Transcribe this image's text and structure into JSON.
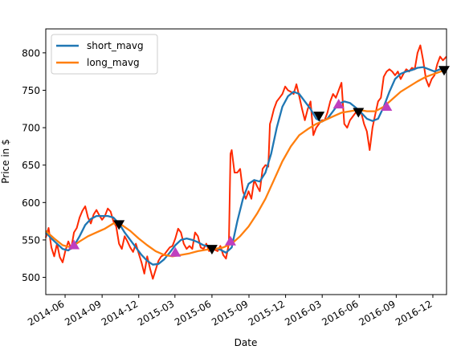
{
  "chart_data": {
    "type": "line",
    "xlabel": "Date",
    "ylabel": "Price in $",
    "xlim": [
      "2014-04-14",
      "2017-01-04"
    ],
    "ylim": [
      477,
      832
    ],
    "x_ticks": [
      "2014-06",
      "2014-09",
      "2014-12",
      "2015-03",
      "2015-06",
      "2015-09",
      "2015-12",
      "2016-03",
      "2016-06",
      "2016-09",
      "2016-12"
    ],
    "y_ticks": [
      500,
      550,
      600,
      650,
      700,
      750,
      800
    ],
    "legend": {
      "placement": "upper-left",
      "entries": [
        "short_mavg",
        "long_mavg"
      ]
    },
    "series": [
      {
        "name": "",
        "role": "price",
        "color": "#ff2a00",
        "points": [
          [
            "2014-04-14",
            553
          ],
          [
            "2014-04-21",
            566
          ],
          [
            "2014-04-28",
            540
          ],
          [
            "2014-05-05",
            528
          ],
          [
            "2014-05-12",
            545
          ],
          [
            "2014-05-19",
            527
          ],
          [
            "2014-05-26",
            520
          ],
          [
            "2014-06-02",
            536
          ],
          [
            "2014-06-09",
            548
          ],
          [
            "2014-06-16",
            538
          ],
          [
            "2014-06-23",
            560
          ],
          [
            "2014-06-30",
            566
          ],
          [
            "2014-07-07",
            580
          ],
          [
            "2014-07-14",
            589
          ],
          [
            "2014-07-21",
            595
          ],
          [
            "2014-07-28",
            580
          ],
          [
            "2014-08-04",
            572
          ],
          [
            "2014-08-11",
            584
          ],
          [
            "2014-08-18",
            590
          ],
          [
            "2014-08-25",
            583
          ],
          [
            "2014-09-01",
            577
          ],
          [
            "2014-09-08",
            582
          ],
          [
            "2014-09-15",
            592
          ],
          [
            "2014-09-22",
            588
          ],
          [
            "2014-09-29",
            575
          ],
          [
            "2014-10-06",
            568
          ],
          [
            "2014-10-13",
            545
          ],
          [
            "2014-10-20",
            538
          ],
          [
            "2014-10-27",
            555
          ],
          [
            "2014-11-03",
            548
          ],
          [
            "2014-11-10",
            540
          ],
          [
            "2014-11-17",
            534
          ],
          [
            "2014-11-24",
            545
          ],
          [
            "2014-12-01",
            532
          ],
          [
            "2014-12-08",
            520
          ],
          [
            "2014-12-15",
            505
          ],
          [
            "2014-12-22",
            528
          ],
          [
            "2014-12-29",
            512
          ],
          [
            "2015-01-05",
            498
          ],
          [
            "2015-01-12",
            510
          ],
          [
            "2015-01-19",
            522
          ],
          [
            "2015-01-26",
            528
          ],
          [
            "2015-02-02",
            530
          ],
          [
            "2015-02-09",
            535
          ],
          [
            "2015-02-16",
            540
          ],
          [
            "2015-02-23",
            542
          ],
          [
            "2015-03-02",
            552
          ],
          [
            "2015-03-09",
            565
          ],
          [
            "2015-03-16",
            560
          ],
          [
            "2015-03-23",
            545
          ],
          [
            "2015-03-30",
            538
          ],
          [
            "2015-04-06",
            542
          ],
          [
            "2015-04-13",
            538
          ],
          [
            "2015-04-20",
            560
          ],
          [
            "2015-04-27",
            555
          ],
          [
            "2015-05-04",
            540
          ],
          [
            "2015-05-11",
            538
          ],
          [
            "2015-05-18",
            545
          ],
          [
            "2015-05-25",
            535
          ],
          [
            "2015-06-01",
            540
          ],
          [
            "2015-06-08",
            537
          ],
          [
            "2015-06-15",
            535
          ],
          [
            "2015-06-22",
            542
          ],
          [
            "2015-06-29",
            530
          ],
          [
            "2015-07-06",
            525
          ],
          [
            "2015-07-13",
            545
          ],
          [
            "2015-07-17",
            665
          ],
          [
            "2015-07-20",
            670
          ],
          [
            "2015-07-27",
            640
          ],
          [
            "2015-08-03",
            640
          ],
          [
            "2015-08-10",
            645
          ],
          [
            "2015-08-17",
            615
          ],
          [
            "2015-08-24",
            605
          ],
          [
            "2015-08-31",
            615
          ],
          [
            "2015-09-07",
            605
          ],
          [
            "2015-09-14",
            630
          ],
          [
            "2015-09-21",
            622
          ],
          [
            "2015-09-28",
            615
          ],
          [
            "2015-10-05",
            645
          ],
          [
            "2015-10-12",
            650
          ],
          [
            "2015-10-19",
            648
          ],
          [
            "2015-10-23",
            705
          ],
          [
            "2015-10-26",
            710
          ],
          [
            "2015-11-02",
            725
          ],
          [
            "2015-11-09",
            735
          ],
          [
            "2015-11-16",
            740
          ],
          [
            "2015-11-23",
            745
          ],
          [
            "2015-11-30",
            755
          ],
          [
            "2015-12-07",
            750
          ],
          [
            "2015-12-14",
            748
          ],
          [
            "2015-12-21",
            745
          ],
          [
            "2015-12-28",
            758
          ],
          [
            "2016-01-04",
            742
          ],
          [
            "2016-01-11",
            725
          ],
          [
            "2016-01-18",
            710
          ],
          [
            "2016-01-25",
            725
          ],
          [
            "2016-02-01",
            735
          ],
          [
            "2016-02-08",
            690
          ],
          [
            "2016-02-15",
            700
          ],
          [
            "2016-02-22",
            705
          ],
          [
            "2016-02-29",
            710
          ],
          [
            "2016-03-07",
            710
          ],
          [
            "2016-03-14",
            720
          ],
          [
            "2016-03-21",
            735
          ],
          [
            "2016-03-28",
            745
          ],
          [
            "2016-04-04",
            740
          ],
          [
            "2016-04-11",
            750
          ],
          [
            "2016-04-18",
            760
          ],
          [
            "2016-04-25",
            705
          ],
          [
            "2016-05-02",
            700
          ],
          [
            "2016-05-09",
            710
          ],
          [
            "2016-05-16",
            715
          ],
          [
            "2016-05-23",
            720
          ],
          [
            "2016-05-30",
            725
          ],
          [
            "2016-06-06",
            720
          ],
          [
            "2016-06-13",
            705
          ],
          [
            "2016-06-20",
            695
          ],
          [
            "2016-06-27",
            670
          ],
          [
            "2016-07-04",
            700
          ],
          [
            "2016-07-11",
            718
          ],
          [
            "2016-07-18",
            735
          ],
          [
            "2016-07-25",
            740
          ],
          [
            "2016-08-01",
            768
          ],
          [
            "2016-08-08",
            775
          ],
          [
            "2016-08-15",
            778
          ],
          [
            "2016-08-22",
            775
          ],
          [
            "2016-08-29",
            770
          ],
          [
            "2016-09-05",
            775
          ],
          [
            "2016-09-12",
            765
          ],
          [
            "2016-09-19",
            772
          ],
          [
            "2016-09-26",
            778
          ],
          [
            "2016-10-03",
            775
          ],
          [
            "2016-10-10",
            780
          ],
          [
            "2016-10-17",
            778
          ],
          [
            "2016-10-24",
            800
          ],
          [
            "2016-10-31",
            810
          ],
          [
            "2016-11-07",
            790
          ],
          [
            "2016-11-14",
            765
          ],
          [
            "2016-11-21",
            755
          ],
          [
            "2016-11-28",
            765
          ],
          [
            "2016-12-05",
            770
          ],
          [
            "2016-12-12",
            785
          ],
          [
            "2016-12-19",
            795
          ],
          [
            "2016-12-26",
            790
          ],
          [
            "2017-01-04",
            795
          ]
        ]
      },
      {
        "name": "short_mavg",
        "color": "#1f77b4",
        "points": [
          [
            "2014-04-14",
            560
          ],
          [
            "2014-04-28",
            552
          ],
          [
            "2014-05-12",
            545
          ],
          [
            "2014-05-26",
            538
          ],
          [
            "2014-06-09",
            536
          ],
          [
            "2014-06-23",
            542
          ],
          [
            "2014-07-07",
            555
          ],
          [
            "2014-07-21",
            570
          ],
          [
            "2014-08-04",
            578
          ],
          [
            "2014-08-18",
            582
          ],
          [
            "2014-09-01",
            582
          ],
          [
            "2014-09-15",
            582
          ],
          [
            "2014-09-29",
            580
          ],
          [
            "2014-10-13",
            572
          ],
          [
            "2014-10-27",
            560
          ],
          [
            "2014-11-10",
            550
          ],
          [
            "2014-11-24",
            540
          ],
          [
            "2014-12-08",
            530
          ],
          [
            "2014-12-22",
            522
          ],
          [
            "2015-01-05",
            517
          ],
          [
            "2015-01-19",
            518
          ],
          [
            "2015-02-02",
            524
          ],
          [
            "2015-02-16",
            533
          ],
          [
            "2015-03-02",
            543
          ],
          [
            "2015-03-16",
            550
          ],
          [
            "2015-03-30",
            552
          ],
          [
            "2015-04-13",
            550
          ],
          [
            "2015-04-27",
            547
          ],
          [
            "2015-05-11",
            543
          ],
          [
            "2015-05-25",
            541
          ],
          [
            "2015-06-08",
            539
          ],
          [
            "2015-06-22",
            537
          ],
          [
            "2015-07-06",
            533
          ],
          [
            "2015-07-20",
            540
          ],
          [
            "2015-08-03",
            575
          ],
          [
            "2015-08-17",
            605
          ],
          [
            "2015-08-31",
            625
          ],
          [
            "2015-09-14",
            630
          ],
          [
            "2015-09-28",
            628
          ],
          [
            "2015-10-12",
            640
          ],
          [
            "2015-10-26",
            665
          ],
          [
            "2015-11-09",
            700
          ],
          [
            "2015-11-23",
            728
          ],
          [
            "2015-12-07",
            742
          ],
          [
            "2015-12-21",
            748
          ],
          [
            "2016-01-04",
            745
          ],
          [
            "2016-01-18",
            735
          ],
          [
            "2016-02-01",
            725
          ],
          [
            "2016-02-15",
            712
          ],
          [
            "2016-02-29",
            708
          ],
          [
            "2016-03-14",
            712
          ],
          [
            "2016-03-28",
            722
          ],
          [
            "2016-04-11",
            732
          ],
          [
            "2016-04-25",
            735
          ],
          [
            "2016-05-09",
            733
          ],
          [
            "2016-05-23",
            727
          ],
          [
            "2016-06-06",
            720
          ],
          [
            "2016-06-20",
            712
          ],
          [
            "2016-07-04",
            709
          ],
          [
            "2016-07-18",
            712
          ],
          [
            "2016-08-01",
            728
          ],
          [
            "2016-08-15",
            748
          ],
          [
            "2016-08-29",
            765
          ],
          [
            "2016-09-12",
            772
          ],
          [
            "2016-09-26",
            775
          ],
          [
            "2016-10-10",
            777
          ],
          [
            "2016-10-24",
            780
          ],
          [
            "2016-11-07",
            781
          ],
          [
            "2016-11-21",
            778
          ],
          [
            "2016-12-05",
            775
          ],
          [
            "2016-12-19",
            778
          ],
          [
            "2017-01-04",
            780
          ]
        ]
      },
      {
        "name": "long_mavg",
        "color": "#ff7f0e",
        "points": [
          [
            "2014-04-14",
            562
          ],
          [
            "2014-05-05",
            552
          ],
          [
            "2014-05-26",
            543
          ],
          [
            "2014-06-16",
            540
          ],
          [
            "2014-07-07",
            548
          ],
          [
            "2014-07-28",
            555
          ],
          [
            "2014-08-18",
            560
          ],
          [
            "2014-09-08",
            565
          ],
          [
            "2014-09-29",
            572
          ],
          [
            "2014-10-20",
            570
          ],
          [
            "2014-11-10",
            562
          ],
          [
            "2014-12-01",
            552
          ],
          [
            "2014-12-22",
            543
          ],
          [
            "2015-01-12",
            535
          ],
          [
            "2015-02-02",
            530
          ],
          [
            "2015-02-23",
            528
          ],
          [
            "2015-03-16",
            530
          ],
          [
            "2015-04-06",
            532
          ],
          [
            "2015-04-27",
            535
          ],
          [
            "2015-05-18",
            537
          ],
          [
            "2015-06-08",
            538
          ],
          [
            "2015-06-29",
            540
          ],
          [
            "2015-07-20",
            545
          ],
          [
            "2015-08-10",
            555
          ],
          [
            "2015-08-31",
            568
          ],
          [
            "2015-09-21",
            585
          ],
          [
            "2015-10-12",
            605
          ],
          [
            "2015-11-02",
            630
          ],
          [
            "2015-11-23",
            655
          ],
          [
            "2015-12-14",
            675
          ],
          [
            "2016-01-04",
            690
          ],
          [
            "2016-01-25",
            698
          ],
          [
            "2016-02-15",
            705
          ],
          [
            "2016-03-07",
            710
          ],
          [
            "2016-03-28",
            715
          ],
          [
            "2016-04-18",
            720
          ],
          [
            "2016-05-09",
            722
          ],
          [
            "2016-05-30",
            724
          ],
          [
            "2016-06-20",
            722
          ],
          [
            "2016-07-11",
            722
          ],
          [
            "2016-08-01",
            728
          ],
          [
            "2016-08-22",
            738
          ],
          [
            "2016-09-12",
            748
          ],
          [
            "2016-10-03",
            755
          ],
          [
            "2016-10-24",
            762
          ],
          [
            "2016-11-14",
            768
          ],
          [
            "2016-12-05",
            772
          ],
          [
            "2016-12-26",
            776
          ],
          [
            "2017-01-04",
            778
          ]
        ]
      }
    ],
    "buy_signals": [
      [
        "2014-06-23",
        543
      ],
      [
        "2015-03-02",
        533
      ],
      [
        "2015-07-17",
        548
      ],
      [
        "2016-04-11",
        731
      ],
      [
        "2016-08-08",
        728
      ]
    ],
    "sell_signals": [
      [
        "2014-10-13",
        571
      ],
      [
        "2015-06-01",
        538
      ],
      [
        "2016-02-22",
        716
      ],
      [
        "2016-05-30",
        721
      ],
      [
        "2016-12-29",
        777
      ]
    ],
    "colors": {
      "buy_marker": "#bf3fbf",
      "sell_marker": "#000000"
    }
  }
}
